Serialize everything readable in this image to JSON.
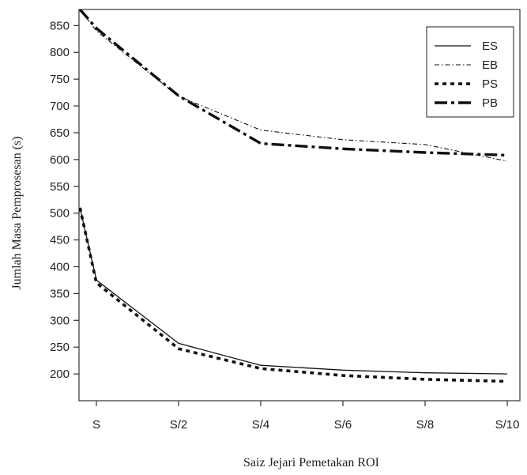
{
  "chart_data": {
    "type": "line",
    "title": "",
    "xlabel": "Saiz Jejari Pemetakan ROI",
    "ylabel": "Jumlah Masa Pemprosesan (s)",
    "categories": [
      "S",
      "S/2",
      "S/4",
      "S/6",
      "S/8",
      "S/10"
    ],
    "yticks": [
      200,
      250,
      300,
      350,
      400,
      450,
      500,
      550,
      600,
      650,
      700,
      750,
      800,
      850
    ],
    "ylim": [
      150,
      880
    ],
    "grid": false,
    "legend_position": "top-right",
    "series": [
      {
        "name": "ES",
        "style": "solid-thin",
        "points": [
          [
            -0.2,
            510
          ],
          [
            0,
            375
          ],
          [
            1,
            257
          ],
          [
            2,
            216
          ],
          [
            3,
            207
          ],
          [
            4,
            202
          ],
          [
            5,
            200
          ]
        ]
      },
      {
        "name": "EB",
        "style": "dash-dot-thin",
        "points": [
          [
            -0.2,
            880
          ],
          [
            0,
            840
          ],
          [
            1,
            718
          ],
          [
            2,
            655
          ],
          [
            3,
            637
          ],
          [
            4,
            628
          ],
          [
            5,
            597
          ]
        ]
      },
      {
        "name": "PS",
        "style": "dotted-thick",
        "points": [
          [
            -0.2,
            510
          ],
          [
            0,
            370
          ],
          [
            1,
            247
          ],
          [
            2,
            210
          ],
          [
            3,
            197
          ],
          [
            4,
            190
          ],
          [
            5,
            186
          ]
        ]
      },
      {
        "name": "PB",
        "style": "dash-dot-thick",
        "points": [
          [
            -0.2,
            880
          ],
          [
            0,
            845
          ],
          [
            1,
            719
          ],
          [
            2,
            630
          ],
          [
            3,
            620
          ],
          [
            4,
            613
          ],
          [
            5,
            608
          ]
        ]
      }
    ]
  }
}
